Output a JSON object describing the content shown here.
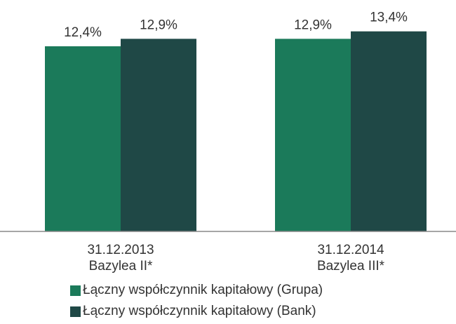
{
  "chart_data": {
    "type": "bar",
    "categories": [
      "31.12.2013\nBazylea II*",
      "31.12.2014\nBazylea III*"
    ],
    "series": [
      {
        "name": "Łączny współczynnik kapitałowy (Grupa)",
        "color": "#1b7a5a",
        "values": [
          12.4,
          12.9
        ],
        "value_labels": [
          "12,4%",
          "12,9%"
        ]
      },
      {
        "name": "Łączny współczynnik kapitałowy (Bank)",
        "color": "#1f4846",
        "values": [
          12.9,
          13.4
        ],
        "value_labels": [
          "12,9%",
          "13,4%"
        ]
      }
    ],
    "ylim": [
      0,
      15.5
    ],
    "legend": "bottom"
  }
}
